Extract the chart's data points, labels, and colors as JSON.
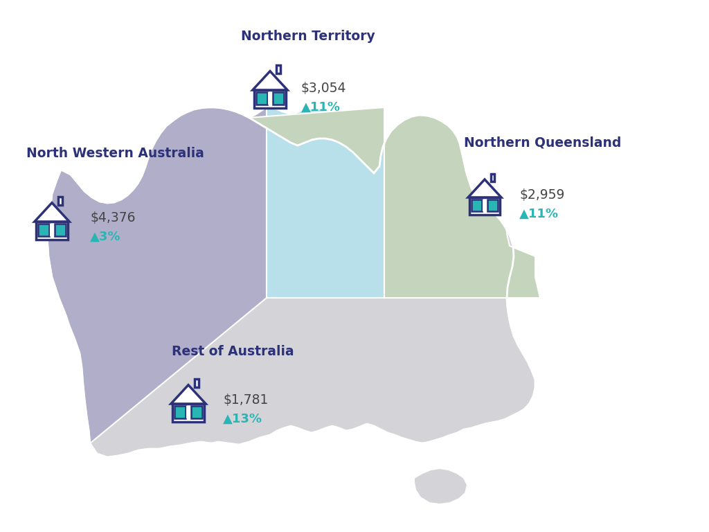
{
  "background_color": "#ffffff",
  "dark_blue": "#2d3178",
  "teal": "#2ab5b5",
  "map_base_color": "#d4d4d8",
  "nwa_color": "#b0aec8",
  "nt_color": "#b8e0ea",
  "nq_color": "#c5d4bc",
  "regions": {
    "north_western_australia": {
      "label": "North Western Australia",
      "price": "$4,376",
      "change": "▲3%"
    },
    "northern_territory": {
      "label": "Northern Territory",
      "price": "$3,054",
      "change": "▲11%"
    },
    "northern_queensland": {
      "label": "Northern Queensland",
      "price": "$2,959",
      "change": "▲11%"
    },
    "rest_of_australia": {
      "label": "Rest of Australia",
      "price": "$1,781",
      "change": "▲13%"
    }
  }
}
